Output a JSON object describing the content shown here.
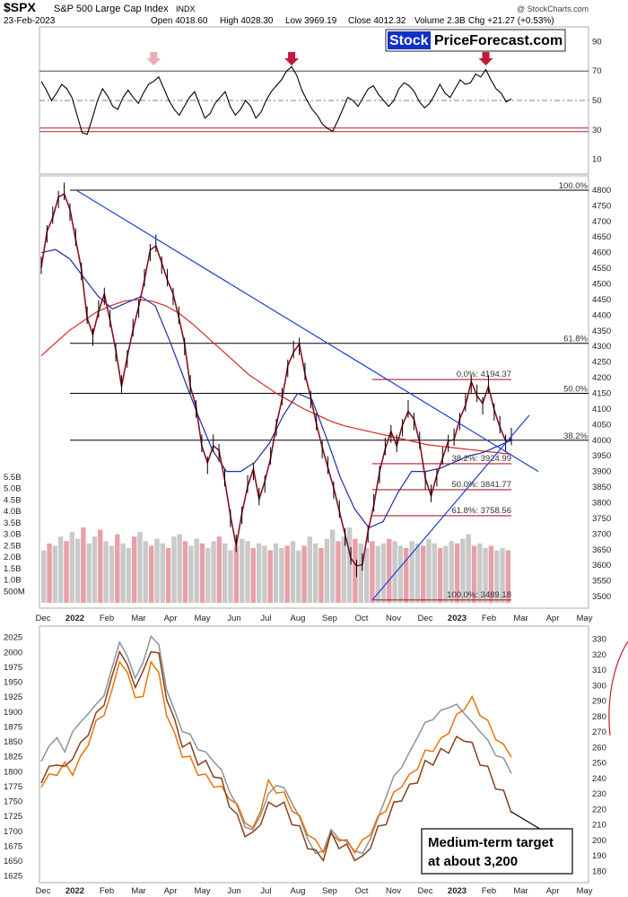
{
  "header": {
    "symbol": "$SPX",
    "name": "S&P 500 Large Cap Index",
    "exchange": "INDX",
    "date": "23-Feb-2023",
    "open": "Open 4018.60",
    "high": "High 4028.30",
    "low": "Low 3969.19",
    "close": "Close 4012.32",
    "volume": "Volume 2.3B",
    "change": "Chg +21.27 (+0.53%)",
    "watermark": "@ StockCharts.com"
  },
  "brand": {
    "part1": "Stock",
    "part2": "PriceForecast.com"
  },
  "annotation": {
    "line1": "Medium-term target",
    "line2": "at about 3,200"
  },
  "colors": {
    "background": "#ffffff",
    "price_line": "#8b1020",
    "ma_red": "#d62828",
    "ma_blue": "#1f2fa0",
    "trend_blue": "#1e3fd8",
    "fib_line": "#b0202c",
    "arrow": "#c2183a",
    "arrow_pale": "#eeaab6",
    "volume": "#c9c9c9",
    "volume_red": "#e8a0a8",
    "lower_orange": "#e8730c",
    "lower_brown": "#8a3f1c",
    "lower_gray": "#8a9498"
  },
  "chart_data": [
    {
      "type": "line",
      "panel": "rsi",
      "x_labels": [
        "Dec",
        "2022",
        "Feb",
        "Mar",
        "Apr",
        "May",
        "Jun",
        "Jul",
        "Aug",
        "Sep",
        "Oct",
        "Nov",
        "Dec",
        "2023",
        "Feb",
        "Mar",
        "May"
      ],
      "yticks": [
        10,
        30,
        50,
        70,
        90
      ],
      "reference_lines": [
        70,
        50,
        30
      ],
      "series": [
        {
          "values": [
            63,
            57,
            50,
            55,
            61,
            58,
            52,
            40,
            28,
            27,
            38,
            50,
            58,
            53,
            46,
            44,
            52,
            57,
            52,
            48,
            55,
            61,
            63,
            66,
            58,
            50,
            44,
            40,
            46,
            52,
            56,
            47,
            38,
            41,
            48,
            52,
            56,
            46,
            40,
            44,
            50,
            46,
            38,
            42,
            50,
            56,
            60,
            64,
            70,
            73,
            67,
            57,
            50,
            44,
            40,
            34,
            31,
            29,
            36,
            44,
            52,
            50,
            46,
            52,
            58,
            60,
            54,
            50,
            46,
            50,
            58,
            62,
            60,
            56,
            49,
            45,
            48,
            54,
            61,
            55,
            52,
            58,
            64,
            61,
            62,
            68,
            66,
            71,
            64,
            58,
            55,
            49,
            51
          ]
        }
      ],
      "arrows": [
        {
          "series_index": 22,
          "color": "pale"
        },
        {
          "series_index": 49,
          "color": "red"
        },
        {
          "series_index": 87,
          "color": "red"
        }
      ]
    },
    {
      "type": "line",
      "panel": "price",
      "title": "$SPX S&P 500 Large Cap Index",
      "x_labels": [
        "Dec",
        "2022",
        "Feb",
        "Mar",
        "Apr",
        "May",
        "Jun",
        "Jul",
        "Aug",
        "Sep",
        "Oct",
        "Nov",
        "Dec",
        "2023",
        "Feb",
        "Mar",
        "Apr",
        "May"
      ],
      "yticks": [
        3500,
        3550,
        3600,
        3650,
        3700,
        3750,
        3800,
        3850,
        3900,
        3950,
        4000,
        4050,
        4100,
        4150,
        4200,
        4250,
        4300,
        4350,
        4400,
        4450,
        4500,
        4550,
        4600,
        4650,
        4700,
        4750,
        4800
      ],
      "ylim": [
        3480,
        4820
      ],
      "series": [
        {
          "values": [
            4560,
            4660,
            4720,
            4770,
            4796,
            4730,
            4650,
            4540,
            4400,
            4330,
            4420,
            4460,
            4390,
            4280,
            4180,
            4260,
            4360,
            4420,
            4520,
            4600,
            4630,
            4560,
            4520,
            4460,
            4400,
            4300,
            4180,
            4100,
            3990,
            3920,
            3990,
            3960,
            3880,
            3750,
            3670,
            3760,
            3860,
            3900,
            3820,
            3860,
            3950,
            4040,
            4140,
            4230,
            4290,
            4300,
            4220,
            4130,
            4060,
            3970,
            3920,
            3840,
            3780,
            3690,
            3630,
            3590,
            3610,
            3700,
            3800,
            3890,
            3980,
            4020,
            3990,
            4040,
            4100,
            4060,
            4000,
            3870,
            3830,
            3880,
            3950,
            3990,
            4010,
            4060,
            4120,
            4180,
            4150,
            4110,
            4180,
            4090,
            4050,
            3990,
            4012
          ]
        }
      ],
      "moving_averages": [
        {
          "name": "200d",
          "values": [
            4270,
            4310,
            4350,
            4380,
            4410,
            4430,
            4445,
            4450,
            4445,
            4430,
            4405,
            4370,
            4330,
            4290,
            4250,
            4210,
            4180,
            4150,
            4125,
            4100,
            4080,
            4060,
            4045,
            4035,
            4025,
            4015,
            4005,
            3995,
            3985,
            3980,
            3975,
            3970,
            3965,
            3960,
            3955
          ]
        },
        {
          "name": "50d",
          "values": [
            4600,
            4610,
            4580,
            4520,
            4460,
            4420,
            4440,
            4460,
            4430,
            4320,
            4200,
            4080,
            3970,
            3900,
            3900,
            3930,
            3990,
            4080,
            4150,
            4130,
            4010,
            3880,
            3780,
            3720,
            3740,
            3830,
            3900,
            3900,
            3910,
            3930,
            3950,
            3960,
            3980,
            4000
          ]
        }
      ],
      "fibonacci": [
        {
          "label": "0.0%: 4194.37",
          "value": 4194.37
        },
        {
          "label": "38.2%: 3924.99",
          "value": 3924.99
        },
        {
          "label": "50.0%: 3841.77",
          "value": 3841.77
        },
        {
          "label": "61.8%: 3758.56",
          "value": 3758.56
        },
        {
          "label": "100.0%: 3489.18",
          "value": 3489.18
        }
      ],
      "fib_long": [
        {
          "label": "100.0%",
          "value": 4800
        },
        {
          "label": "61.8%",
          "value": 4310
        },
        {
          "label": "50.0%",
          "value": 4150
        },
        {
          "label": "38.2%",
          "value": 4000
        }
      ]
    },
    {
      "type": "bar",
      "panel": "volume",
      "yticks": [
        "500M",
        "1.0B",
        "1.5B",
        "2.0B",
        "2.5B",
        "3.0B",
        "3.5B",
        "4.0B",
        "4.5B",
        "5.0B",
        "5.5B"
      ],
      "values_b": [
        2.3,
        2.6,
        2.5,
        2.9,
        2.7,
        3.1,
        2.8,
        3.3,
        2.6,
        2.9,
        3.2,
        2.7,
        2.5,
        3.0,
        2.6,
        2.4,
        2.9,
        3.1,
        2.7,
        2.5,
        2.8,
        2.6,
        2.4,
        2.9,
        3.0,
        2.7,
        2.5,
        2.8,
        2.6,
        2.4,
        2.7,
        2.9,
        2.6,
        2.3,
        2.5,
        2.8,
        2.7,
        2.4,
        2.6,
        2.5,
        2.3,
        2.6,
        2.4,
        2.5,
        2.7,
        2.3,
        2.5,
        2.9,
        2.6,
        2.4,
        2.8,
        3.2,
        2.7,
        2.9,
        3.3,
        2.8,
        2.6,
        2.4,
        2.7,
        2.5,
        2.6,
        2.8,
        2.7,
        2.5,
        2.4,
        2.7,
        2.6,
        2.5,
        2.8,
        2.6,
        2.4,
        2.5,
        2.7,
        2.6,
        2.8,
        3.0,
        2.5,
        2.6,
        2.4,
        2.5,
        2.3,
        2.4,
        2.3
      ]
    },
    {
      "type": "line",
      "panel": "lower",
      "x_labels": [
        "Dec",
        "2022",
        "Feb",
        "Mar",
        "Apr",
        "May",
        "Jun",
        "Jul",
        "Aug",
        "Sep",
        "Oct",
        "Nov",
        "Dec",
        "2023",
        "Feb",
        "Mar",
        "Apr",
        "May"
      ],
      "yticks_left": [
        1625,
        1650,
        1675,
        1700,
        1725,
        1750,
        1775,
        1800,
        1825,
        1850,
        1875,
        1900,
        1925,
        1950,
        1975,
        2000,
        2025
      ],
      "yticks_right": [
        180,
        190,
        200,
        210,
        220,
        230,
        240,
        250,
        260,
        270,
        280,
        290,
        300,
        310,
        320,
        330
      ],
      "series": [
        {
          "color": "gray",
          "values": [
            1820,
            1840,
            1860,
            1830,
            1870,
            1880,
            1900,
            1910,
            1930,
            1970,
            2020,
            1990,
            1960,
            1980,
            2030,
            2010,
            1940,
            1900,
            1870,
            1860,
            1840,
            1830,
            1820,
            1800,
            1770,
            1740,
            1710,
            1700,
            1730,
            1760,
            1780,
            1770,
            1750,
            1720,
            1690,
            1660,
            1670,
            1700,
            1690,
            1680,
            1670,
            1660,
            1690,
            1720,
            1760,
            1790,
            1810,
            1830,
            1860,
            1880,
            1890,
            1900,
            1910,
            1910,
            1900,
            1880,
            1870,
            1850,
            1830,
            1820,
            1800
          ]
        },
        {
          "color": "orange",
          "values": [
            1780,
            1790,
            1800,
            1810,
            1800,
            1820,
            1850,
            1880,
            1900,
            1930,
            1990,
            1960,
            1930,
            1920,
            1990,
            1960,
            1900,
            1860,
            1830,
            1820,
            1800,
            1790,
            1780,
            1770,
            1760,
            1740,
            1720,
            1700,
            1740,
            1780,
            1770,
            1760,
            1740,
            1720,
            1700,
            1680,
            1670,
            1690,
            1690,
            1680,
            1670,
            1680,
            1700,
            1720,
            1740,
            1760,
            1780,
            1790,
            1810,
            1830,
            1840,
            1850,
            1870,
            1890,
            1910,
            1920,
            1900,
            1880,
            1860,
            1840,
            1830
          ]
        },
        {
          "color": "brown",
          "values": [
            1790,
            1800,
            1820,
            1800,
            1830,
            1840,
            1870,
            1890,
            1920,
            1950,
            2010,
            1970,
            1950,
            1960,
            2010,
            1990,
            1930,
            1880,
            1850,
            1840,
            1820,
            1810,
            1800,
            1780,
            1750,
            1720,
            1700,
            1690,
            1720,
            1740,
            1750,
            1740,
            1720,
            1700,
            1680,
            1660,
            1660,
            1690,
            1680,
            1670,
            1660,
            1650,
            1680,
            1700,
            1720,
            1740,
            1760,
            1770,
            1790,
            1810,
            1820,
            1830,
            1840,
            1850,
            1860,
            1840,
            1820,
            1800,
            1780,
            1760,
            1740
          ]
        }
      ]
    }
  ]
}
